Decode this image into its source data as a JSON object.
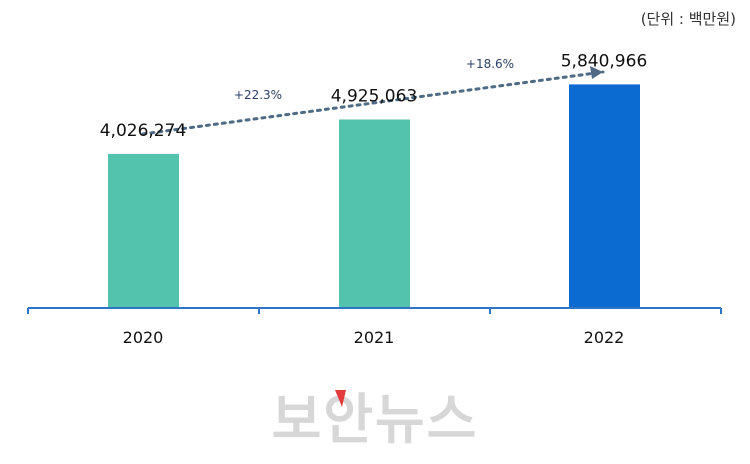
{
  "chart_data": {
    "type": "bar",
    "categories": [
      "2020",
      "2021",
      "2022"
    ],
    "values": [
      4026274,
      4925063,
      5840966
    ],
    "value_labels": [
      "4,026,274",
      "4,925,063",
      "5,840,966"
    ],
    "unit_label": "(단위 : 백만원)",
    "growth_labels": [
      "+22.3%",
      "+18.6%"
    ],
    "ylim": [
      0,
      6400000
    ],
    "grid": false,
    "legend": "none",
    "colors": {
      "bar_2020": "#53c3ae",
      "bar_2021": "#53c3ae",
      "bar_2022": "#0b6bd1",
      "axis": "#2f76c9",
      "trend": "#4e6a85",
      "watermark": "#d7d7d7",
      "watermark_accent": "#e33b3b"
    }
  },
  "watermark": {
    "text": "보안뉴스"
  }
}
